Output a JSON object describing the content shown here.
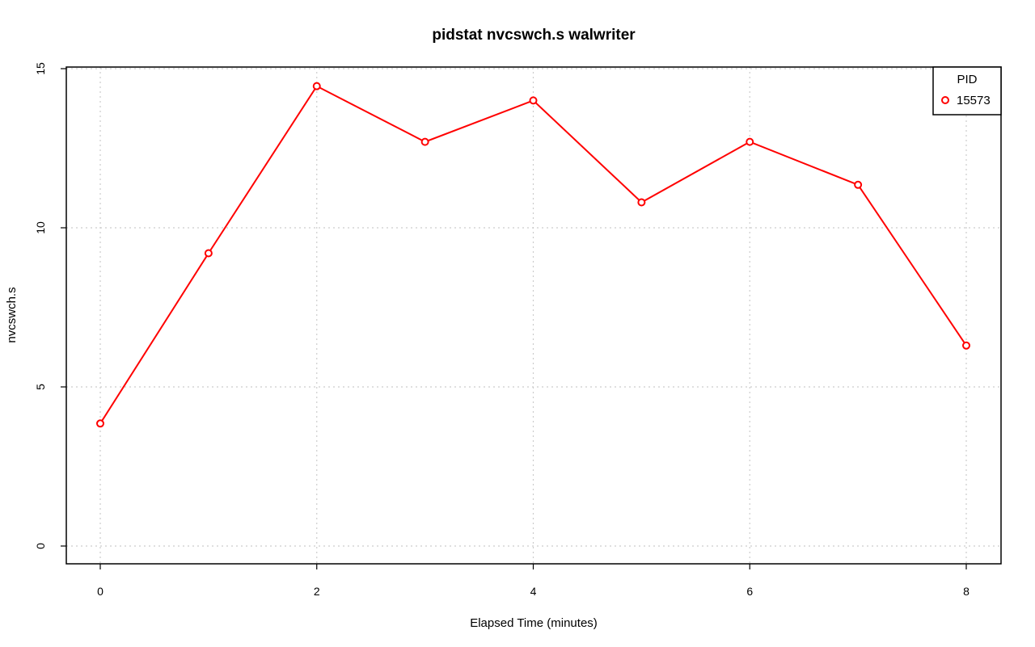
{
  "colors": {
    "series": "#ff0000",
    "grid": "#cccccc",
    "axis": "#000000",
    "background": "#ffffff"
  },
  "chart_data": {
    "type": "line",
    "title": "pidstat nvcswch.s walwriter",
    "xlabel": "Elapsed Time (minutes)",
    "ylabel": "nvcswch.s",
    "xlim": [
      0,
      8
    ],
    "ylim": [
      0,
      15
    ],
    "x_ticks": [
      0,
      2,
      4,
      6,
      8
    ],
    "x_tick_labels": [
      "0",
      "2",
      "4",
      "6",
      "8"
    ],
    "y_ticks": [
      0,
      5,
      10,
      15
    ],
    "y_tick_labels": [
      "0",
      "5",
      "10",
      "15"
    ],
    "grid": true,
    "legend": {
      "title": "PID",
      "placement": "top-right",
      "entries": [
        "15573"
      ]
    },
    "series": [
      {
        "name": "15573",
        "x": [
          0,
          1,
          2,
          3,
          4,
          5,
          6,
          7,
          8
        ],
        "values": [
          3.85,
          9.2,
          14.45,
          12.7,
          14.0,
          10.8,
          12.7,
          11.35,
          6.3
        ]
      }
    ]
  }
}
